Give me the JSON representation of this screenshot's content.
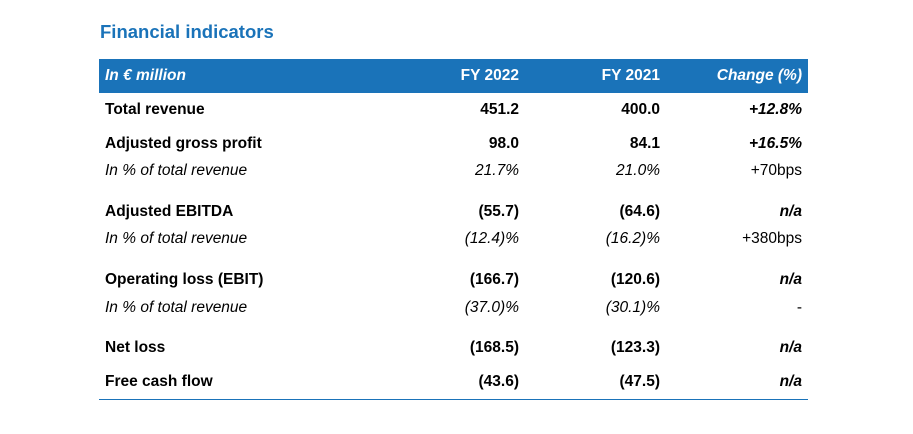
{
  "title": "Financial indicators",
  "colors": {
    "accent": "#1a73b9",
    "header_text": "#ffffff"
  },
  "table": {
    "columns": [
      "In € million",
      "FY 2022",
      "FY 2021",
      "Change (%)"
    ],
    "rows": [
      {
        "type": "main",
        "label": "Total revenue",
        "fy2022": "451.2",
        "fy2021": "400.0",
        "change": "+12.8%"
      },
      {
        "type": "main",
        "label": "Adjusted gross profit",
        "fy2022": "98.0",
        "fy2021": "84.1",
        "change": "+16.5%"
      },
      {
        "type": "sub",
        "label": "In % of total revenue",
        "fy2022": "21.7%",
        "fy2021": "21.0%",
        "change": "+70bps"
      },
      {
        "type": "main",
        "label": "Adjusted EBITDA",
        "fy2022": "(55.7)",
        "fy2021": "(64.6)",
        "change": "n/a"
      },
      {
        "type": "sub",
        "label": "In % of total revenue",
        "fy2022": "(12.4)%",
        "fy2021": "(16.2)%",
        "change": "+380bps"
      },
      {
        "type": "main",
        "label": "Operating loss (EBIT)",
        "fy2022": "(166.7)",
        "fy2021": "(120.6)",
        "change": "n/a"
      },
      {
        "type": "sub",
        "label": "In % of total revenue",
        "fy2022": "(37.0)%",
        "fy2021": "(30.1)%",
        "change": "-"
      },
      {
        "type": "main",
        "label": "Net loss",
        "fy2022": "(168.5)",
        "fy2021": "(123.3)",
        "change": "n/a"
      },
      {
        "type": "main",
        "label": "Free cash flow",
        "fy2022": "(43.6)",
        "fy2021": "(47.5)",
        "change": "n/a"
      }
    ]
  }
}
